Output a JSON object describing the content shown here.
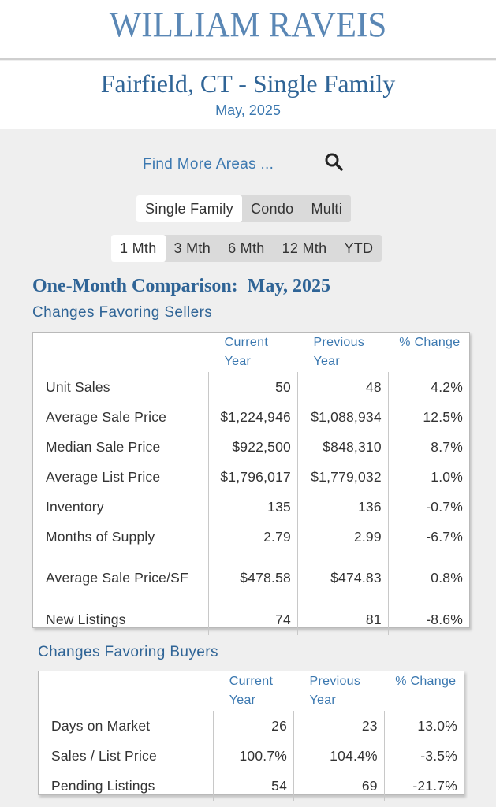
{
  "brand": {
    "logo_text": "WILLIAM RAVEIS"
  },
  "header": {
    "title": "Fairfield, CT - Single Family",
    "subtitle": "May, 2025"
  },
  "find": {
    "label": "Find More Areas ...",
    "icon": "search-icon"
  },
  "property_types": {
    "items": [
      "Single Family",
      "Condo",
      "Multi"
    ],
    "selected": "Single Family"
  },
  "periods": {
    "items": [
      "1 Mth",
      "3 Mth",
      "6 Mth",
      "12 Mth",
      "YTD"
    ],
    "selected": "1 Mth"
  },
  "comparison": {
    "title": "One-Month Comparison:  May, 2025",
    "sellers": {
      "heading": "Changes Favoring Sellers",
      "columns": [
        "Current Year",
        "Previous Year",
        "% Change"
      ],
      "rows": [
        {
          "label": "Unit Sales",
          "current": "50",
          "previous": "48",
          "change": "4.2%"
        },
        {
          "label": "Average Sale Price",
          "current": "$1,224,946",
          "previous": "$1,088,934",
          "change": "12.5%"
        },
        {
          "label": "Median Sale Price",
          "current": "$922,500",
          "previous": "$848,310",
          "change": "8.7%"
        },
        {
          "label": "Average List Price",
          "current": "$1,796,017",
          "previous": "$1,779,032",
          "change": "1.0%"
        },
        {
          "label": "Inventory",
          "current": "135",
          "previous": "136",
          "change": "-0.7%"
        },
        {
          "label": "Months of Supply",
          "current": "2.79",
          "previous": "2.99",
          "change": "-6.7%"
        },
        {
          "label": "Average Sale Price/SF",
          "current": "$478.58",
          "previous": "$474.83",
          "change": "0.8%"
        },
        {
          "label": "New Listings",
          "current": "74",
          "previous": "81",
          "change": "-8.6%"
        }
      ]
    },
    "buyers": {
      "heading": "Changes Favoring Buyers",
      "columns": [
        "Current Year",
        "Previous Year",
        "% Change"
      ],
      "rows": [
        {
          "label": "Days on Market",
          "current": "26",
          "previous": "23",
          "change": "13.0%"
        },
        {
          "label": "Sales / List Price",
          "current": "100.7%",
          "previous": "104.4%",
          "change": "-3.5%"
        },
        {
          "label": "Pending Listings",
          "current": "54",
          "previous": "69",
          "change": "-21.7%"
        }
      ]
    }
  }
}
